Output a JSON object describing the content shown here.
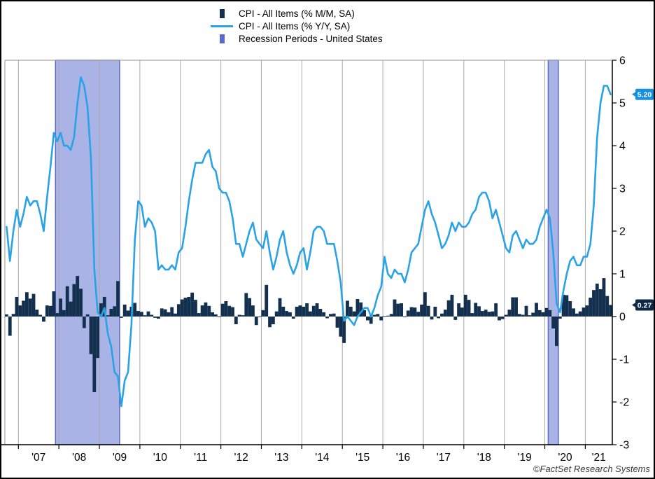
{
  "legend": {
    "items": [
      {
        "label": "CPI - All Items (% M/M, SA)",
        "marker": "bar",
        "color": "#14304f"
      },
      {
        "label": "CPI - All Items (% Y/Y, SA)",
        "marker": "line",
        "color": "#2aa2e8"
      },
      {
        "label": "Recession Periods - United States",
        "marker": "band",
        "color": "#5a6ac8"
      }
    ]
  },
  "footer": {
    "copyright": "©FactSet Research Systems"
  },
  "chart_data": {
    "type": "bar+line",
    "frequency": "monthly",
    "start": "2006-09",
    "ylim": [
      -3,
      6
    ],
    "y_ticks": [
      6,
      5,
      4,
      3,
      2,
      1,
      0,
      -1,
      -2,
      -3
    ],
    "x_tick_labels": [
      "'07",
      "'08",
      "'09",
      "'10",
      "'11",
      "'12",
      "'13",
      "'14",
      "'15",
      "'16",
      "'17",
      "'18",
      "'19",
      "'20",
      "'21"
    ],
    "grid": "vertical-year-lines",
    "legend_position": "top-center",
    "series": [
      {
        "name": "CPI - All Items (% M/M, SA)",
        "type": "bar",
        "color": "#14304f",
        "last_label": "0.27",
        "values": [
          0.05,
          -0.45,
          0.06,
          0.46,
          0.26,
          0.37,
          0.57,
          0.42,
          0.53,
          0.16,
          0.04,
          -0.12,
          0.26,
          0.25,
          0.59,
          0.08,
          0.42,
          0.15,
          0.71,
          0.35,
          0.76,
          0.95,
          0.65,
          -0.27,
          0.05,
          -0.88,
          -1.77,
          -0.97,
          0.31,
          0.46,
          0.03,
          0.18,
          0.24,
          0.83,
          -0.03,
          0.28,
          0.14,
          0.23,
          0.32,
          0.13,
          0.11,
          0.03,
          0.12,
          0.04,
          -0.03,
          -0.05,
          0.19,
          0.17,
          0.1,
          0.22,
          0.07,
          0.29,
          0.4,
          0.44,
          0.46,
          0.56,
          0.39,
          0.08,
          0.26,
          0.33,
          0.25,
          0.1,
          0.05,
          0.0,
          0.3,
          0.36,
          0.25,
          0.22,
          -0.18,
          0.04,
          0.03,
          0.55,
          0.43,
          0.26,
          -0.2,
          0.0,
          0.15,
          0.74,
          -0.25,
          -0.18,
          0.12,
          0.43,
          0.23,
          0.13,
          0.1,
          -0.05,
          0.23,
          0.26,
          0.23,
          0.31,
          0.12,
          0.25,
          0.31,
          0.18,
          0.1,
          -0.04,
          0.06,
          0.07,
          -0.26,
          -0.47,
          -0.62,
          0.37,
          0.23,
          0.12,
          0.41,
          0.33,
          0.15,
          -0.09,
          -0.17,
          0.04,
          0.06,
          -0.09,
          0.01,
          0.02,
          0.06,
          0.4,
          0.3,
          0.31,
          -0.01,
          0.14,
          0.22,
          0.21,
          0.11,
          0.28,
          0.57,
          0.25,
          -0.07,
          0.23,
          -0.04,
          0.07,
          0.16,
          0.38,
          0.51,
          -0.08,
          0.31,
          0.21,
          0.51,
          0.39,
          0.08,
          0.32,
          0.24,
          0.13,
          0.16,
          0.11,
          0.12,
          0.31,
          -0.09,
          -0.06,
          0.04,
          0.16,
          0.45,
          0.45,
          0.06,
          0.04,
          0.25,
          0.03,
          0.09,
          0.32,
          0.15,
          0.1,
          0.2,
          0.15,
          -0.28,
          -0.69,
          -0.05,
          0.51,
          0.5,
          0.36,
          0.19,
          0.07,
          0.12,
          0.21,
          0.26,
          0.44,
          0.62,
          0.77,
          0.64,
          0.9,
          0.48,
          0.27
        ]
      },
      {
        "name": "CPI - All Items (% Y/Y, SA)",
        "type": "line",
        "color": "#2aa2e8",
        "last_label": "5.20",
        "values": [
          2.1,
          1.3,
          2.0,
          2.5,
          2.1,
          2.4,
          2.8,
          2.6,
          2.7,
          2.7,
          2.4,
          2.0,
          2.8,
          3.5,
          4.3,
          4.1,
          4.3,
          4.0,
          4.0,
          3.9,
          4.2,
          5.0,
          5.6,
          5.4,
          4.9,
          3.7,
          1.1,
          0.1,
          0.0,
          0.2,
          -0.4,
          -0.7,
          -1.3,
          -1.4,
          -2.1,
          -1.5,
          -1.3,
          -0.2,
          1.8,
          2.7,
          2.6,
          2.1,
          2.3,
          2.2,
          2.0,
          1.1,
          1.2,
          1.1,
          1.1,
          1.2,
          1.1,
          1.5,
          1.6,
          2.1,
          2.7,
          3.2,
          3.6,
          3.6,
          3.6,
          3.8,
          3.9,
          3.5,
          3.4,
          3.0,
          2.9,
          2.9,
          2.7,
          2.3,
          1.7,
          1.7,
          1.4,
          1.7,
          2.0,
          2.2,
          1.8,
          1.7,
          1.6,
          2.0,
          1.5,
          1.1,
          1.4,
          1.8,
          2.0,
          1.5,
          1.2,
          1.0,
          1.2,
          1.5,
          1.6,
          1.1,
          1.5,
          2.0,
          2.1,
          2.1,
          2.0,
          1.7,
          1.7,
          1.7,
          1.3,
          0.8,
          -0.1,
          0.0,
          -0.1,
          -0.2,
          0.0,
          0.1,
          0.2,
          0.2,
          0.0,
          0.2,
          0.5,
          0.7,
          1.4,
          1.0,
          0.9,
          1.1,
          1.0,
          1.0,
          0.8,
          1.1,
          1.5,
          1.6,
          1.7,
          2.1,
          2.5,
          2.7,
          2.4,
          2.2,
          1.9,
          1.6,
          1.7,
          1.9,
          2.2,
          2.0,
          2.2,
          2.1,
          2.1,
          2.2,
          2.4,
          2.5,
          2.8,
          2.9,
          2.9,
          2.7,
          2.3,
          2.5,
          2.2,
          1.9,
          1.6,
          1.5,
          1.9,
          2.0,
          1.8,
          1.6,
          1.8,
          1.7,
          1.7,
          1.8,
          2.1,
          2.3,
          2.5,
          2.3,
          1.5,
          0.3,
          0.1,
          0.6,
          1.0,
          1.3,
          1.4,
          1.2,
          1.2,
          1.4,
          1.4,
          1.7,
          2.6,
          4.2,
          5.0,
          5.4,
          5.4,
          5.2
        ]
      }
    ],
    "recession_bands": [
      {
        "from": "2007-12",
        "to": "2009-06"
      },
      {
        "from": "2020-02",
        "to": "2020-04"
      }
    ],
    "colors": {
      "bar": "#14304f",
      "line": "#2aa2e8",
      "band_fill": "#aab3e6",
      "band_border": "#5a6ac8",
      "grid": "#a9a9a9",
      "axis": "#000000",
      "tag_mm_bg": "#0e2946",
      "tag_yy_bg": "#1390e2",
      "tag_text": "#ffffff",
      "tick_text": "#000000"
    }
  }
}
